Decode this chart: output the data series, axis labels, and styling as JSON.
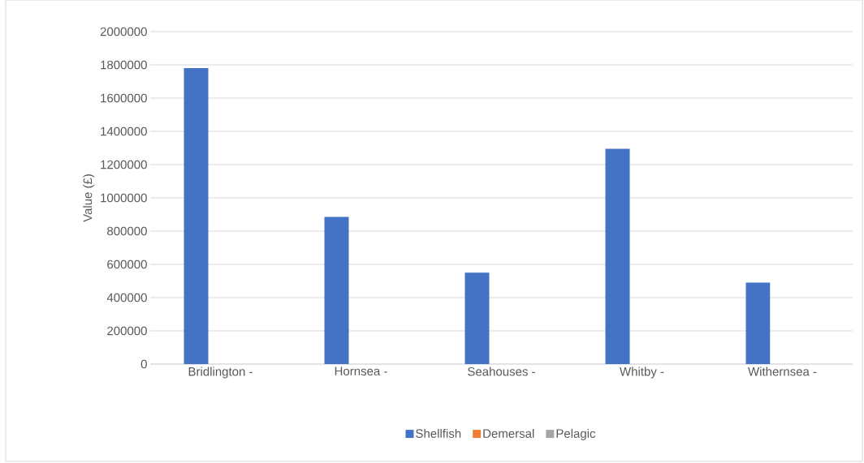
{
  "chart_data": {
    "type": "bar",
    "ylabel": "Value (£)",
    "categories": [
      "Bridlington -",
      "Hornsea -",
      "Seahouses -",
      "Whitby -",
      "Withernsea -"
    ],
    "series": [
      {
        "name": "Shellfish",
        "color": "#4472c4",
        "values": [
          1780000,
          885000,
          550000,
          1295000,
          490000
        ]
      },
      {
        "name": "Demersal",
        "color": "#ed7d31",
        "values": [
          0,
          0,
          0,
          0,
          0
        ]
      },
      {
        "name": "Pelagic",
        "color": "#a5a5a5",
        "values": [
          0,
          0,
          0,
          0,
          0
        ]
      }
    ],
    "ylim": [
      0,
      2000000
    ],
    "yticks": [
      0,
      200000,
      400000,
      600000,
      800000,
      1000000,
      1200000,
      1400000,
      1600000,
      1800000,
      2000000
    ],
    "grid": "y",
    "legend": "bottom"
  }
}
